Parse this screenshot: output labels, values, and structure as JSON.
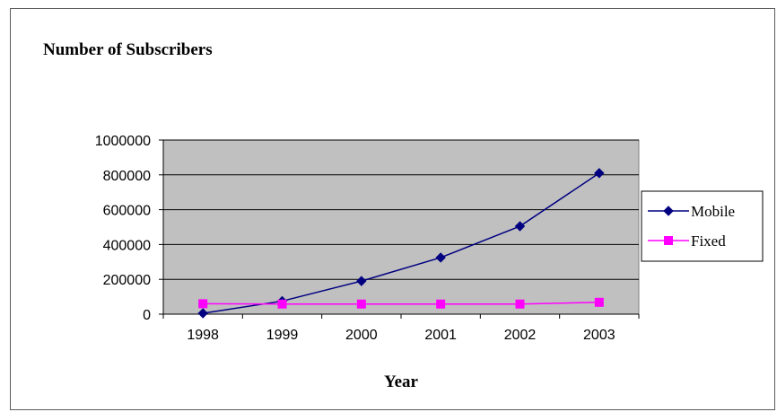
{
  "chart_data": {
    "type": "line",
    "title": "Number of Subscribers",
    "xlabel": "Year",
    "ylabel": "",
    "categories": [
      "1998",
      "1999",
      "2000",
      "2001",
      "2002",
      "2003"
    ],
    "ylim": [
      0,
      1000000
    ],
    "yticks": [
      "0",
      "200000",
      "400000",
      "600000",
      "800000",
      "1000000"
    ],
    "grid": true,
    "legend_position": "right",
    "plot_background": "#c0c0c0",
    "series": [
      {
        "name": "Mobile",
        "color": "#000080",
        "marker": "diamond",
        "values": [
          5000,
          75000,
          190000,
          325000,
          505000,
          810000
        ]
      },
      {
        "name": "Fixed",
        "color": "#ff00ff",
        "marker": "square",
        "values": [
          60000,
          58000,
          58000,
          58000,
          58000,
          68000
        ]
      }
    ]
  }
}
